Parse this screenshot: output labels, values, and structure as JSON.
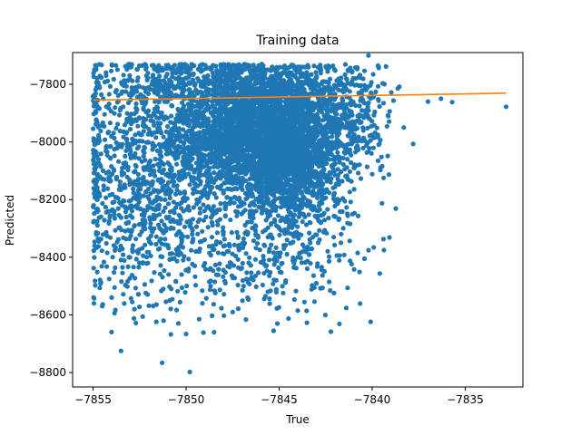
{
  "chart_data": {
    "type": "scatter",
    "title": "Training data",
    "xlabel": "True",
    "ylabel": "Predicted",
    "xlim": [
      -7856.1,
      -7831.9
    ],
    "ylim": [
      -8850,
      -7690
    ],
    "xticks": [
      -7855,
      -7850,
      -7845,
      -7840,
      -7835
    ],
    "yticks": [
      -8800,
      -8600,
      -8400,
      -8200,
      -8000,
      -7800
    ],
    "xtick_labels": [
      "−7855",
      "−7850",
      "−7845",
      "−7840",
      "−7835"
    ],
    "ytick_labels": [
      "−8800",
      "−8600",
      "−8400",
      "−8200",
      "−8000",
      "−7800"
    ],
    "grid": false,
    "legend": "none",
    "colors": {
      "scatter": "#1f77b4",
      "line": "#ff7f0e"
    },
    "series": [
      {
        "kind": "scatter",
        "points": [
          [
            -7855.0,
            -7842
          ],
          [
            -7854.9,
            -8482
          ],
          [
            -7854.6,
            -8492
          ],
          [
            -7854.3,
            -7770
          ],
          [
            -7854.0,
            -8540
          ],
          [
            -7853.8,
            -8583
          ],
          [
            -7853.5,
            -8725
          ],
          [
            -7852.8,
            -8612
          ],
          [
            -7852.7,
            -8628
          ],
          [
            -7852.0,
            -8568
          ],
          [
            -7851.6,
            -8624
          ],
          [
            -7850.8,
            -8510
          ],
          [
            -7850.0,
            -8666
          ],
          [
            -7849.8,
            -8798
          ],
          [
            -7849.3,
            -8615
          ],
          [
            -7848.5,
            -8660
          ],
          [
            -7847.5,
            -8590
          ],
          [
            -7845.6,
            -8520
          ],
          [
            -7845.3,
            -8655
          ],
          [
            -7845.1,
            -8630
          ],
          [
            -7844.0,
            -8585
          ],
          [
            -7843.0,
            -8490
          ],
          [
            -7841.5,
            -8392
          ],
          [
            -7841.8,
            -8270
          ],
          [
            -7840.2,
            -7700
          ],
          [
            -7840.0,
            -8112
          ],
          [
            -7839.5,
            -8052
          ],
          [
            -7839.1,
            -8113
          ],
          [
            -7838.3,
            -7950
          ],
          [
            -7837.8,
            -8007
          ],
          [
            -7837.0,
            -7860
          ],
          [
            -7836.3,
            -7850
          ],
          [
            -7835.7,
            -7862
          ],
          [
            -7832.8,
            -7878
          ]
        ],
        "clusters": [
          {
            "cx": -7845.7,
            "cy": -7975,
            "sx": 2.2,
            "sy": 110,
            "n": 3200
          },
          {
            "cx": -7844.3,
            "cy": -8140,
            "sx": 1.3,
            "sy": 100,
            "n": 650
          },
          {
            "cx": -7851.0,
            "cy": -8025,
            "sx": 2.4,
            "sy": 190,
            "n": 900
          },
          {
            "cx": -7852.5,
            "cy": -8250,
            "sx": 1.9,
            "sy": 170,
            "n": 380
          },
          {
            "cx": -7846.0,
            "cy": -8400,
            "sx": 2.9,
            "sy": 100,
            "n": 300
          },
          {
            "cx": -7841.0,
            "cy": -7880,
            "sx": 1.0,
            "sy": 90,
            "n": 160
          },
          {
            "cx": -7847.5,
            "cy": -7800,
            "sx": 3.5,
            "sy": 35,
            "n": 500
          }
        ]
      },
      {
        "kind": "line",
        "name": "",
        "x": [
          -7855.0,
          -7832.8
        ],
        "y": [
          -7855,
          -7831
        ]
      }
    ]
  }
}
